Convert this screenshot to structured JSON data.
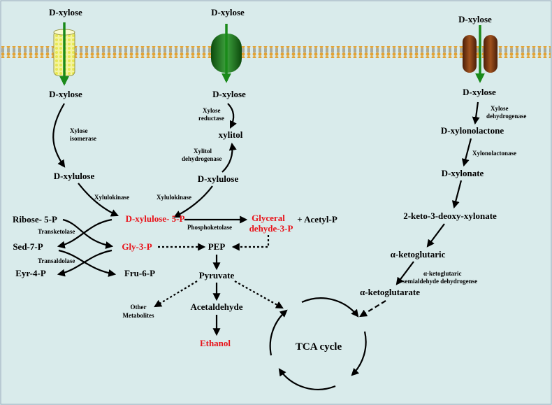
{
  "pathways": {
    "isomerase": {
      "outside": "D-xylose",
      "inside": "D-xylose",
      "enzyme1": [
        "Xylose",
        "isomerase"
      ],
      "product": "D-xylulose",
      "kinase": "Xylulokinase"
    },
    "reductase": {
      "outside": "D-xylose",
      "inside": "D-xylose",
      "enzyme1": [
        "Xylose",
        "reductase"
      ],
      "intermediate": "xylitol",
      "enzyme2": [
        "Xylitol",
        "dehydrogenase"
      ],
      "product": "D-xylulose",
      "kinase": "Xylulokinase"
    },
    "oxidative": {
      "outside": "D-xylose",
      "inside": "D-xylose",
      "enzyme1": [
        "Xylose",
        "dehydrogenase"
      ],
      "step1": "D-xylonolactone",
      "enzyme2": "Xylonolactonase",
      "step2": "D-xylonate",
      "step3": "2-keto-3-deoxy-xylonate",
      "step4": "α-ketoglutaric",
      "enzyme3": [
        "α-ketoglutaric",
        "semialdehyde dehydrogense"
      ],
      "step5": "α-ketoglutarate"
    }
  },
  "central": {
    "xylulose5p": "D-xylulose- 5-P",
    "phosphoketolase": "Phosphoketolase",
    "glyceraldehyde": [
      "Glyceral",
      "dehyde-3-P"
    ],
    "acetyl": "+ Acetyl-P",
    "ribose": "Ribose- 5-P",
    "transketolase": "Transketolase",
    "sed": "Sed-7-P",
    "gly": "Gly-3-P",
    "transaldolase": "Transaldolase",
    "eyr": "Eyr-4-P",
    "fru": "Fru-6-P",
    "pep": "PEP",
    "pyruvate": "Pyruvate",
    "other": [
      "Other",
      "Metabolites"
    ],
    "acetaldehyde": "Acetaldehyde",
    "ethanol": "Ethanol",
    "tca": "TCA cycle"
  },
  "colors": {
    "background": "#d9ebeb",
    "highlight": "#e8131a",
    "transport_arrow": "#1a8a1a"
  }
}
